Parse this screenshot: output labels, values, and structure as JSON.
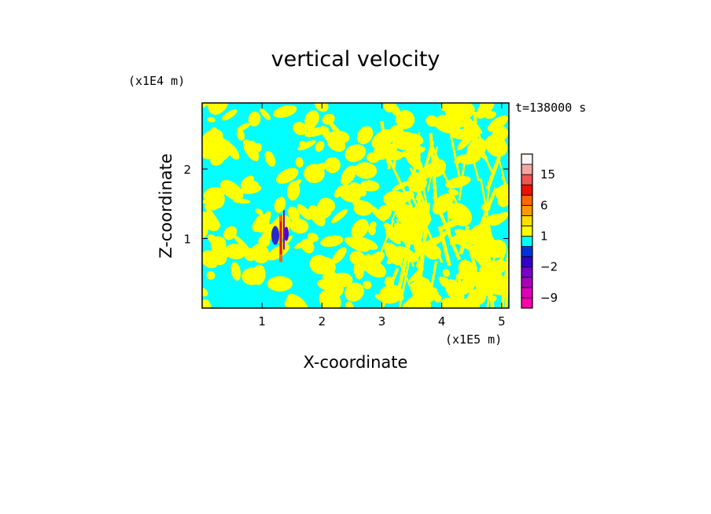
{
  "chart_data": {
    "type": "heatmap",
    "title": "vertical velocity",
    "xlabel": "X-coordinate",
    "ylabel": "Z-coordinate",
    "x_unit": "(x1E5 m)",
    "y_unit": "(x1E4 m)",
    "time_label": "t=138000 s",
    "xlim": [
      0,
      5.12
    ],
    "ylim": [
      0,
      2.95
    ],
    "xticks": [
      1,
      2,
      3,
      4,
      5
    ],
    "yticks": [
      1,
      2
    ],
    "colorbar": {
      "levels": [
        -12,
        -9,
        -6,
        -3,
        -2,
        -1,
        0,
        1,
        2,
        3,
        6,
        9,
        12,
        15,
        18,
        21
      ],
      "colors": [
        "#ff00aa",
        "#dd00bb",
        "#aa00bb",
        "#7700cc",
        "#3300cc",
        "#0033dd",
        "#00ffff",
        "#ffff00",
        "#ffdd00",
        "#ff9900",
        "#ff6600",
        "#ee1100",
        "#ee5555",
        "#f4a5a5",
        "#fff4f4"
      ],
      "labels": [
        {
          "text": "15",
          "value": 15
        },
        {
          "text": "6",
          "value": 6
        },
        {
          "text": "1",
          "value": 1
        },
        {
          "text": "−2",
          "value": -2
        },
        {
          "text": "−9",
          "value": -9
        }
      ]
    },
    "field": {
      "background": "#00ffff",
      "positive_color": "#ffff00",
      "extremes_near_x": 1.3,
      "extremes_near_z": 1.0
    }
  }
}
